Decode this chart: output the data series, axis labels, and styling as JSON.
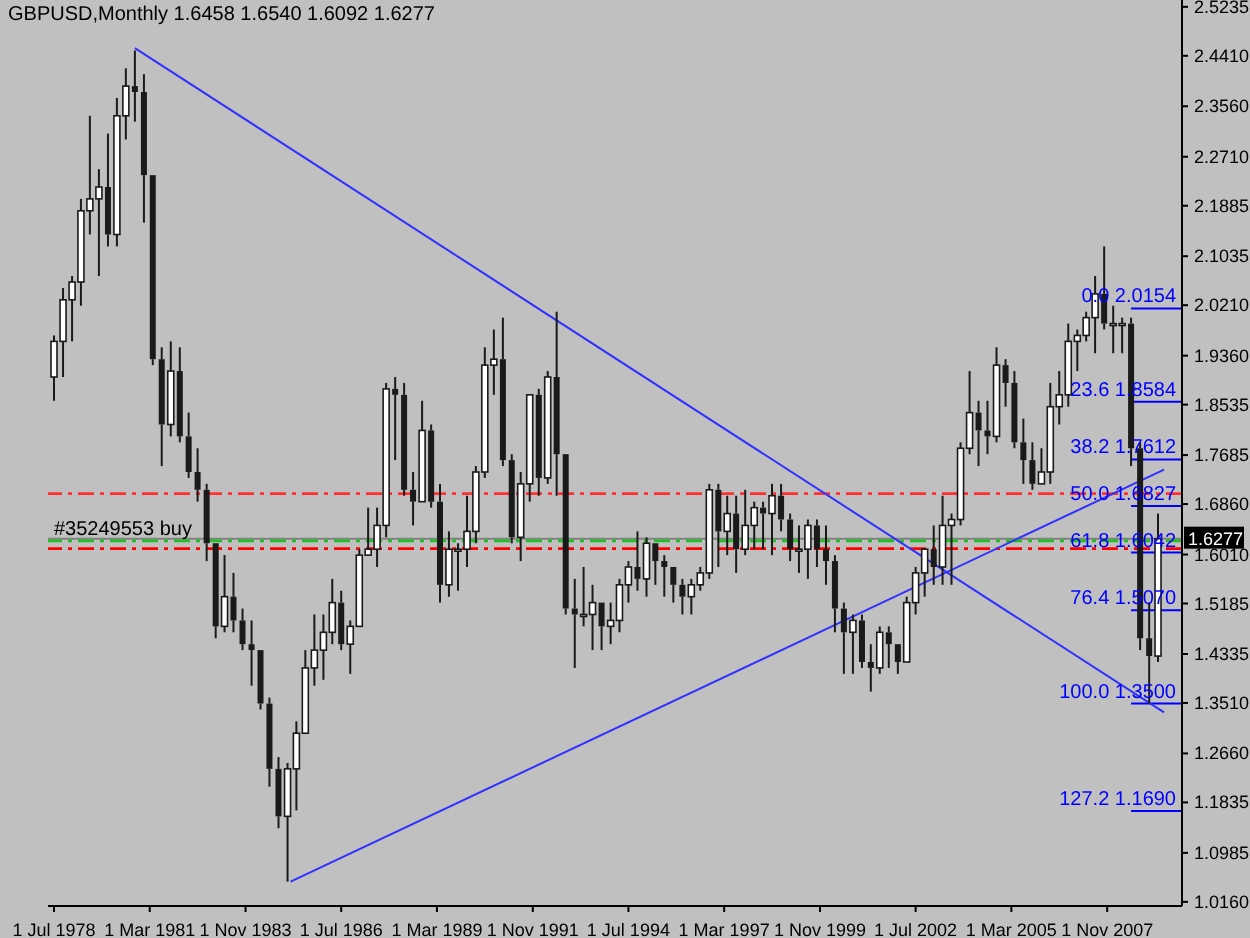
{
  "chart_data": {
    "type": "candlestick",
    "title": "GBPUSD,Monthly  1.6458 1.6540 1.6092 1.6277",
    "color": "#1a1a1a",
    "x": [
      "1978-07",
      "1978-10",
      "1979-01",
      "1979-04",
      "1979-07",
      "1979-10",
      "1980-01",
      "1980-04",
      "1980-07",
      "1980-10",
      "1981-01",
      "1981-04",
      "1981-07",
      "1981-10",
      "1982-01",
      "1982-04",
      "1982-07",
      "1982-10",
      "1983-01",
      "1983-04",
      "1983-07",
      "1983-10",
      "1984-01",
      "1984-04",
      "1984-07",
      "1984-10",
      "1985-01",
      "1985-04",
      "1985-07",
      "1985-10",
      "1986-01",
      "1986-04",
      "1986-07",
      "1986-10",
      "1987-01",
      "1987-04",
      "1987-07",
      "1987-10",
      "1988-01",
      "1988-04",
      "1988-07",
      "1988-10",
      "1989-01",
      "1989-04",
      "1989-07",
      "1989-10",
      "1990-01",
      "1990-04",
      "1990-07",
      "1990-10",
      "1991-01",
      "1991-04",
      "1991-07",
      "1991-10",
      "1992-01",
      "1992-04",
      "1992-07",
      "1992-10",
      "1993-01",
      "1993-04",
      "1993-07",
      "1993-10",
      "1994-01",
      "1994-04",
      "1994-07",
      "1994-10",
      "1995-01",
      "1995-04",
      "1995-07",
      "1995-10",
      "1996-01",
      "1996-04",
      "1996-07",
      "1996-10",
      "1997-01",
      "1997-04",
      "1997-07",
      "1997-10",
      "1998-01",
      "1998-04",
      "1998-07",
      "1998-10",
      "1999-01",
      "1999-04",
      "1999-07",
      "1999-10",
      "2000-01",
      "2000-04",
      "2000-07",
      "2000-10",
      "2001-01",
      "2001-04",
      "2001-07",
      "2001-10",
      "2002-01",
      "2002-04",
      "2002-07",
      "2002-10",
      "2003-01",
      "2003-04",
      "2003-07",
      "2003-10",
      "2004-01",
      "2004-04",
      "2004-07",
      "2004-10",
      "2005-01",
      "2005-04",
      "2005-07",
      "2005-10",
      "2006-01",
      "2006-04",
      "2006-07",
      "2006-10",
      "2007-01",
      "2007-04",
      "2007-07",
      "2007-10",
      "2008-01",
      "2008-04",
      "2008-07",
      "2008-10",
      "2009-01",
      "2009-04"
    ],
    "ohlc": [
      [
        1.9,
        1.97,
        1.86,
        1.96
      ],
      [
        1.96,
        2.05,
        1.9,
        2.03
      ],
      [
        2.03,
        2.07,
        1.96,
        2.06
      ],
      [
        2.06,
        2.2,
        2.02,
        2.18
      ],
      [
        2.18,
        2.34,
        2.14,
        2.2
      ],
      [
        2.2,
        2.25,
        2.07,
        2.22
      ],
      [
        2.22,
        2.31,
        2.12,
        2.14
      ],
      [
        2.14,
        2.37,
        2.12,
        2.34
      ],
      [
        2.34,
        2.42,
        2.3,
        2.39
      ],
      [
        2.39,
        2.45,
        2.33,
        2.38
      ],
      [
        2.38,
        2.41,
        2.16,
        2.24
      ],
      [
        2.24,
        2.24,
        1.92,
        1.93
      ],
      [
        1.93,
        1.95,
        1.75,
        1.82
      ],
      [
        1.82,
        1.96,
        1.8,
        1.91
      ],
      [
        1.91,
        1.95,
        1.79,
        1.8
      ],
      [
        1.8,
        1.84,
        1.73,
        1.74
      ],
      [
        1.74,
        1.78,
        1.69,
        1.71
      ],
      [
        1.71,
        1.72,
        1.59,
        1.62
      ],
      [
        1.62,
        1.62,
        1.46,
        1.48
      ],
      [
        1.48,
        1.6,
        1.47,
        1.53
      ],
      [
        1.53,
        1.57,
        1.47,
        1.49
      ],
      [
        1.49,
        1.51,
        1.44,
        1.45
      ],
      [
        1.45,
        1.49,
        1.38,
        1.44
      ],
      [
        1.44,
        1.44,
        1.34,
        1.35
      ],
      [
        1.35,
        1.36,
        1.21,
        1.24
      ],
      [
        1.24,
        1.26,
        1.14,
        1.16
      ],
      [
        1.16,
        1.25,
        1.05,
        1.24
      ],
      [
        1.24,
        1.32,
        1.17,
        1.3
      ],
      [
        1.3,
        1.44,
        1.3,
        1.41
      ],
      [
        1.41,
        1.5,
        1.38,
        1.44
      ],
      [
        1.44,
        1.5,
        1.39,
        1.47
      ],
      [
        1.47,
        1.56,
        1.45,
        1.52
      ],
      [
        1.52,
        1.54,
        1.44,
        1.45
      ],
      [
        1.45,
        1.49,
        1.4,
        1.48
      ],
      [
        1.48,
        1.61,
        1.48,
        1.6
      ],
      [
        1.6,
        1.68,
        1.6,
        1.61
      ],
      [
        1.61,
        1.68,
        1.58,
        1.65
      ],
      [
        1.65,
        1.89,
        1.63,
        1.88
      ],
      [
        1.88,
        1.9,
        1.76,
        1.87
      ],
      [
        1.87,
        1.89,
        1.7,
        1.71
      ],
      [
        1.71,
        1.74,
        1.65,
        1.69
      ],
      [
        1.69,
        1.86,
        1.69,
        1.81
      ],
      [
        1.81,
        1.82,
        1.68,
        1.69
      ],
      [
        1.69,
        1.72,
        1.52,
        1.55
      ],
      [
        1.55,
        1.64,
        1.53,
        1.61
      ],
      [
        1.61,
        1.62,
        1.54,
        1.61
      ],
      [
        1.61,
        1.7,
        1.58,
        1.64
      ],
      [
        1.64,
        1.75,
        1.62,
        1.74
      ],
      [
        1.74,
        1.95,
        1.73,
        1.92
      ],
      [
        1.92,
        1.98,
        1.87,
        1.93
      ],
      [
        1.93,
        2.0,
        1.75,
        1.76
      ],
      [
        1.76,
        1.77,
        1.62,
        1.63
      ],
      [
        1.63,
        1.74,
        1.59,
        1.72
      ],
      [
        1.72,
        1.87,
        1.69,
        1.87
      ],
      [
        1.87,
        1.88,
        1.7,
        1.73
      ],
      [
        1.73,
        1.91,
        1.72,
        1.9
      ],
      [
        1.9,
        2.01,
        1.7,
        1.77
      ],
      [
        1.77,
        1.77,
        1.5,
        1.51
      ],
      [
        1.51,
        1.56,
        1.41,
        1.5
      ],
      [
        1.5,
        1.58,
        1.48,
        1.5
      ],
      [
        1.5,
        1.55,
        1.44,
        1.52
      ],
      [
        1.52,
        1.52,
        1.44,
        1.48
      ],
      [
        1.48,
        1.52,
        1.45,
        1.49
      ],
      [
        1.49,
        1.56,
        1.47,
        1.55
      ],
      [
        1.55,
        1.59,
        1.52,
        1.58
      ],
      [
        1.58,
        1.64,
        1.54,
        1.56
      ],
      [
        1.56,
        1.63,
        1.53,
        1.62
      ],
      [
        1.62,
        1.62,
        1.55,
        1.59
      ],
      [
        1.59,
        1.6,
        1.53,
        1.58
      ],
      [
        1.58,
        1.58,
        1.52,
        1.55
      ],
      [
        1.55,
        1.56,
        1.5,
        1.53
      ],
      [
        1.53,
        1.56,
        1.5,
        1.55
      ],
      [
        1.55,
        1.58,
        1.54,
        1.57
      ],
      [
        1.57,
        1.72,
        1.56,
        1.71
      ],
      [
        1.71,
        1.72,
        1.58,
        1.64
      ],
      [
        1.64,
        1.7,
        1.6,
        1.67
      ],
      [
        1.67,
        1.7,
        1.57,
        1.61
      ],
      [
        1.61,
        1.71,
        1.6,
        1.65
      ],
      [
        1.65,
        1.69,
        1.61,
        1.68
      ],
      [
        1.68,
        1.69,
        1.61,
        1.67
      ],
      [
        1.67,
        1.72,
        1.6,
        1.7
      ],
      [
        1.7,
        1.72,
        1.64,
        1.66
      ],
      [
        1.66,
        1.67,
        1.59,
        1.61
      ],
      [
        1.61,
        1.65,
        1.57,
        1.61
      ],
      [
        1.61,
        1.66,
        1.56,
        1.65
      ],
      [
        1.65,
        1.66,
        1.58,
        1.61
      ],
      [
        1.61,
        1.65,
        1.55,
        1.59
      ],
      [
        1.59,
        1.6,
        1.47,
        1.51
      ],
      [
        1.51,
        1.52,
        1.4,
        1.47
      ],
      [
        1.47,
        1.5,
        1.4,
        1.49
      ],
      [
        1.49,
        1.5,
        1.41,
        1.42
      ],
      [
        1.42,
        1.45,
        1.37,
        1.41
      ],
      [
        1.41,
        1.48,
        1.4,
        1.47
      ],
      [
        1.47,
        1.48,
        1.41,
        1.45
      ],
      [
        1.45,
        1.45,
        1.4,
        1.42
      ],
      [
        1.42,
        1.53,
        1.42,
        1.52
      ],
      [
        1.52,
        1.58,
        1.5,
        1.57
      ],
      [
        1.57,
        1.61,
        1.53,
        1.61
      ],
      [
        1.61,
        1.65,
        1.55,
        1.58
      ],
      [
        1.58,
        1.7,
        1.55,
        1.65
      ],
      [
        1.65,
        1.67,
        1.55,
        1.66
      ],
      [
        1.66,
        1.79,
        1.65,
        1.78
      ],
      [
        1.78,
        1.91,
        1.77,
        1.84
      ],
      [
        1.84,
        1.86,
        1.75,
        1.81
      ],
      [
        1.81,
        1.86,
        1.77,
        1.8
      ],
      [
        1.8,
        1.95,
        1.79,
        1.92
      ],
      [
        1.92,
        1.93,
        1.85,
        1.89
      ],
      [
        1.89,
        1.91,
        1.78,
        1.79
      ],
      [
        1.79,
        1.83,
        1.72,
        1.76
      ],
      [
        1.76,
        1.79,
        1.71,
        1.72
      ],
      [
        1.72,
        1.78,
        1.72,
        1.74
      ],
      [
        1.74,
        1.89,
        1.72,
        1.85
      ],
      [
        1.85,
        1.91,
        1.82,
        1.87
      ],
      [
        1.87,
        1.99,
        1.85,
        1.96
      ],
      [
        1.96,
        1.98,
        1.91,
        1.97
      ],
      [
        1.97,
        2.01,
        1.96,
        2.0
      ],
      [
        2.0,
        2.07,
        1.94,
        2.04
      ],
      [
        2.04,
        2.12,
        1.98,
        1.99
      ],
      [
        1.99,
        2.02,
        1.94,
        1.99
      ],
      [
        1.99,
        2.0,
        1.94,
        1.99
      ],
      [
        1.99,
        2.0,
        1.75,
        1.78
      ],
      [
        1.78,
        1.79,
        1.44,
        1.46
      ],
      [
        1.46,
        1.52,
        1.35,
        1.43
      ],
      [
        1.43,
        1.67,
        1.42,
        1.6277
      ]
    ],
    "series": [
      {
        "type": "line",
        "color": "#3030ff",
        "x": [
          "1980-10",
          "2009-06"
        ],
        "values": [
          2.454,
          1.335
        ]
      },
      {
        "type": "line",
        "color": "#3030ff",
        "x": [
          "1985-02",
          "2009-06"
        ],
        "values": [
          1.05,
          1.744
        ]
      }
    ],
    "ref_lines": [
      {
        "axis": "y",
        "value": 1.7035,
        "color": "#ff3030",
        "line_style": "dashed"
      },
      {
        "axis": "y",
        "value": 1.611,
        "color": "#ff0000",
        "line_style": "dashed"
      },
      {
        "axis": "y",
        "value": 1.6277,
        "label": "1.6277",
        "color": "#808080"
      },
      {
        "axis": "y",
        "value": 1.624,
        "label": "#35249553 buy",
        "color": "#20c020",
        "line_style": "dashed"
      },
      {
        "axis": "y",
        "value": 2.0154,
        "label": "0.0 2.0154",
        "color": "#0000ff",
        "line_style": "solid"
      },
      {
        "axis": "y",
        "value": 1.8584,
        "label": "23.6 1.8584",
        "color": "#0000ff",
        "line_style": "solid"
      },
      {
        "axis": "y",
        "value": 1.7612,
        "label": "38.2 1.7612",
        "color": "#0000ff",
        "line_style": "solid"
      },
      {
        "axis": "y",
        "value": 1.6827,
        "label": "50.0 1.6827",
        "color": "#0000ff",
        "line_style": "solid"
      },
      {
        "axis": "y",
        "value": 1.6042,
        "label": "61.8 1.6042",
        "color": "#0000ff",
        "line_style": "solid"
      },
      {
        "axis": "y",
        "value": 1.507,
        "label": "76.4 1.5070",
        "color": "#0000ff",
        "line_style": "solid"
      },
      {
        "axis": "y",
        "value": 1.35,
        "label": "100.0 1.3500",
        "color": "#0000ff",
        "line_style": "solid"
      },
      {
        "axis": "y",
        "value": 1.169,
        "label": "127.2 1.1690",
        "color": "#0000ff",
        "line_style": "solid"
      }
    ],
    "xlim": [
      "1978-05",
      "2009-12"
    ],
    "xticks": [
      {
        "value": "1978-07-01",
        "label": "1 Jul 1978"
      },
      {
        "value": "1981-03-01",
        "label": "1 Mar 1981"
      },
      {
        "value": "1983-11-01",
        "label": "1 Nov 1983"
      },
      {
        "value": "1986-07-01",
        "label": "1 Jul 1986"
      },
      {
        "value": "1989-03-01",
        "label": "1 Mar 1989"
      },
      {
        "value": "1991-11-01",
        "label": "1 Nov 1991"
      },
      {
        "value": "1994-07-01",
        "label": "1 Jul 1994"
      },
      {
        "value": "1997-03-01",
        "label": "1 Mar 1997"
      },
      {
        "value": "1999-11-01",
        "label": "1 Nov 1999"
      },
      {
        "value": "2002-07-01",
        "label": "1 Jul 2002"
      },
      {
        "value": "2005-03-01",
        "label": "1 Mar 2005"
      },
      {
        "value": "2007-11-01",
        "label": "1 Nov 2007"
      }
    ],
    "ylim": [
      1.009,
      2.535
    ],
    "yticks": [
      2.5235,
      {
        "value": 2.441,
        "label": "2.4410"
      },
      {
        "value": 2.356,
        "label": "2.3560"
      },
      {
        "value": 2.271,
        "label": "2.2710"
      },
      2.1885,
      2.1035,
      {
        "value": 2.021,
        "label": "2.0210"
      },
      {
        "value": 1.936,
        "label": "1.9360"
      },
      1.8535,
      1.7685,
      {
        "value": 1.686,
        "label": "1.6860"
      },
      {
        "value": 1.601,
        "label": "1.6010"
      },
      1.5185,
      1.4335,
      {
        "value": 1.351,
        "label": "1.3510"
      },
      {
        "value": 1.266,
        "label": "1.2660"
      },
      1.1835,
      1.0985,
      {
        "value": 1.016,
        "label": "1.0160"
      }
    ]
  }
}
